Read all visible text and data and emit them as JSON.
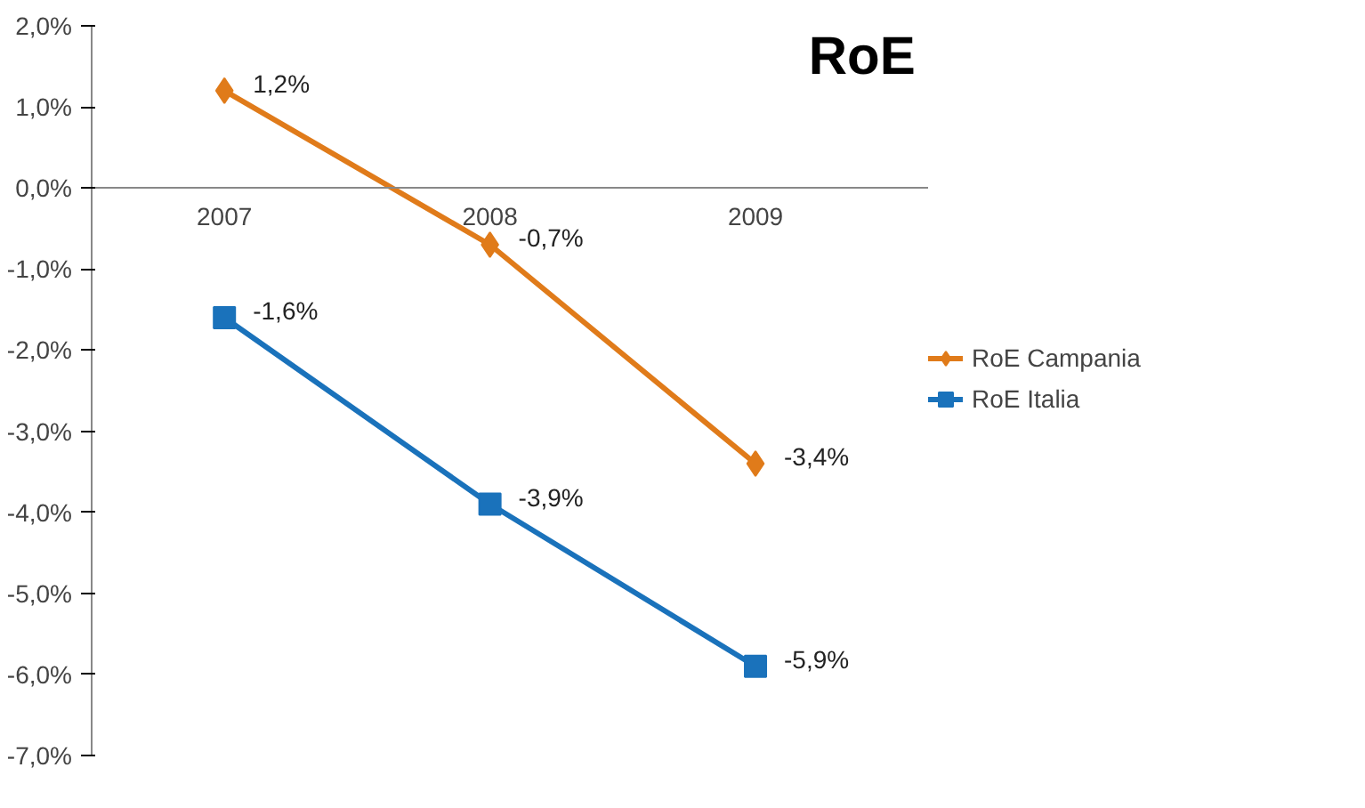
{
  "chart_data": {
    "type": "line",
    "title": "RoE",
    "categories": [
      "2007",
      "2008",
      "2009"
    ],
    "series": [
      {
        "name": "RoE Campania",
        "color": "#e07b1a",
        "marker": "diamond",
        "values": [
          1.2,
          -0.7,
          -3.4
        ],
        "value_labels": [
          "1,2%",
          "-0,7%",
          "-3,4%"
        ]
      },
      {
        "name": "RoE Italia",
        "color": "#1a72bb",
        "marker": "square",
        "values": [
          -1.6,
          -3.9,
          -5.9
        ],
        "value_labels": [
          "-1,6%",
          "-3,9%",
          "-5,9%"
        ]
      }
    ],
    "ylim": [
      -7,
      2
    ],
    "yticks": [
      {
        "value": 2,
        "label": "2,0%"
      },
      {
        "value": 1,
        "label": "1,0%"
      },
      {
        "value": 0,
        "label": "0,0%"
      },
      {
        "value": -1,
        "label": "-1,0%"
      },
      {
        "value": -2,
        "label": "-2,0%"
      },
      {
        "value": -3,
        "label": "-3,0%"
      },
      {
        "value": -4,
        "label": "-4,0%"
      },
      {
        "value": -5,
        "label": "-5,0%"
      },
      {
        "value": -6,
        "label": "-6,0%"
      },
      {
        "value": -7,
        "label": "-7,0%"
      }
    ],
    "grid": false,
    "legend": "right"
  }
}
